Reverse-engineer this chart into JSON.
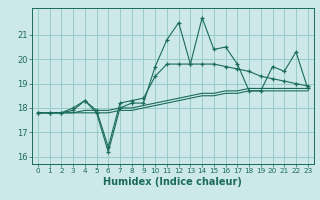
{
  "xlabel": "Humidex (Indice chaleur)",
  "ylabel": "",
  "bg_color": "#cce8e8",
  "grid_color": "#99cccc",
  "line_color": "#1a6b5a",
  "x_values": [
    0,
    1,
    2,
    3,
    4,
    5,
    6,
    7,
    8,
    9,
    10,
    11,
    12,
    13,
    14,
    15,
    16,
    17,
    18,
    19,
    20,
    21,
    22,
    23
  ],
  "series1": [
    17.8,
    17.8,
    17.8,
    17.9,
    18.3,
    17.8,
    16.2,
    18.0,
    18.2,
    18.2,
    19.7,
    20.8,
    21.5,
    19.8,
    21.7,
    20.4,
    20.5,
    19.8,
    18.7,
    18.7,
    19.7,
    19.5,
    20.3,
    18.8
  ],
  "series2": [
    17.8,
    17.8,
    17.8,
    18.0,
    18.3,
    17.9,
    16.4,
    18.2,
    18.3,
    18.4,
    19.3,
    19.8,
    19.8,
    19.8,
    19.8,
    19.8,
    19.7,
    19.6,
    19.5,
    19.3,
    19.2,
    19.1,
    19.0,
    18.9
  ],
  "series3": [
    17.8,
    17.8,
    17.8,
    17.8,
    17.9,
    17.9,
    17.9,
    18.0,
    18.0,
    18.1,
    18.2,
    18.3,
    18.4,
    18.5,
    18.6,
    18.6,
    18.7,
    18.7,
    18.8,
    18.8,
    18.8,
    18.8,
    18.8,
    18.8
  ],
  "series4": [
    17.8,
    17.8,
    17.8,
    17.8,
    17.8,
    17.8,
    17.8,
    17.9,
    17.9,
    18.0,
    18.1,
    18.2,
    18.3,
    18.4,
    18.5,
    18.5,
    18.6,
    18.6,
    18.7,
    18.7,
    18.7,
    18.7,
    18.7,
    18.7
  ],
  "ylim_min": 15.7,
  "ylim_max": 22.1,
  "yticks": [
    16,
    17,
    18,
    19,
    20,
    21
  ],
  "xticks": [
    0,
    1,
    2,
    3,
    4,
    5,
    6,
    7,
    8,
    9,
    10,
    11,
    12,
    13,
    14,
    15,
    16,
    17,
    18,
    19,
    20,
    21,
    22,
    23
  ]
}
